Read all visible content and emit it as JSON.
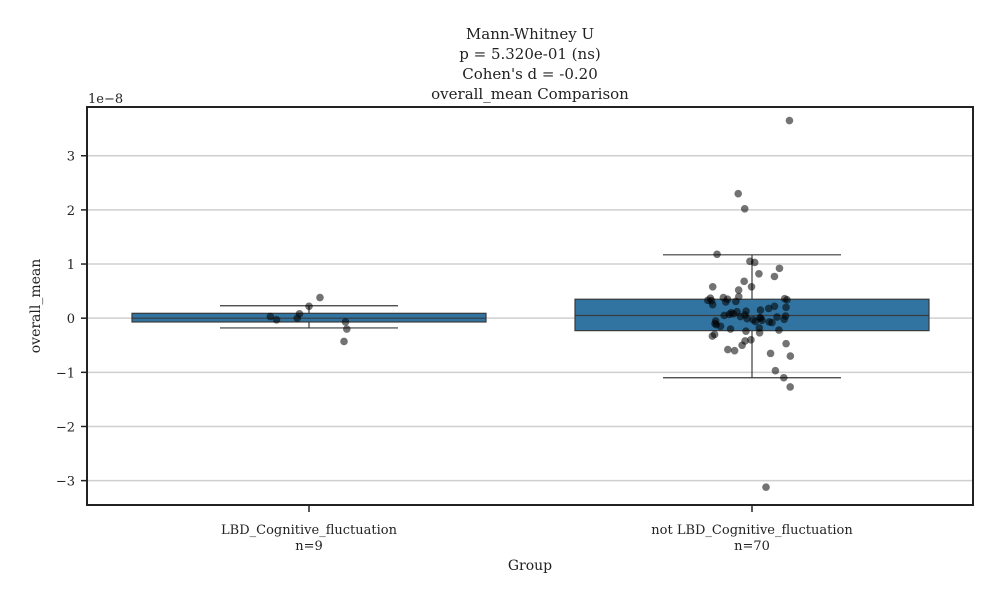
{
  "chart_data": {
    "type": "box",
    "title_lines": [
      "Mann-Whitney U",
      "p = 5.320e-01 (ns)",
      "Cohen's d = -0.20",
      "overall_mean Comparison"
    ],
    "xlabel": "Group",
    "ylabel": "overall_mean",
    "y_offset_label": "1e−8",
    "ylim": [
      -3.45,
      3.9
    ],
    "yticks": [
      -3,
      -2,
      -1,
      0,
      1,
      2,
      3
    ],
    "ytick_labels": [
      "−3",
      "−2",
      "−1",
      "0",
      "1",
      "2",
      "3"
    ],
    "grid": true,
    "box_color": "#3274a1",
    "groups": [
      {
        "name": "LBD_Cognitive_fluctuation",
        "n_label": "n=9",
        "whisker_low": -0.18,
        "q1": -0.07,
        "median": 0.0,
        "q3": 0.09,
        "whisker_high": 0.23,
        "points": [
          -0.43,
          -0.2,
          0.03,
          0.08,
          -0.07,
          -0.03,
          0.0,
          0.22,
          0.38
        ]
      },
      {
        "name": "not LBD_Cognitive_fluctuation",
        "n_label": "n=70",
        "whisker_low": -1.1,
        "q1": -0.23,
        "median": 0.05,
        "q3": 0.35,
        "whisker_high": 1.17,
        "points": [
          3.65,
          2.3,
          2.02,
          1.18,
          1.05,
          1.03,
          0.92,
          0.82,
          0.77,
          0.68,
          0.58,
          0.58,
          0.52,
          0.4,
          0.38,
          0.37,
          0.36,
          0.35,
          0.34,
          0.33,
          0.32,
          0.31,
          0.3,
          0.25,
          0.22,
          0.2,
          0.18,
          0.15,
          0.13,
          0.12,
          0.1,
          0.08,
          0.06,
          0.05,
          0.04,
          0.03,
          0.02,
          0.01,
          0.0,
          -0.01,
          -0.02,
          -0.03,
          -0.04,
          -0.05,
          -0.06,
          -0.07,
          -0.08,
          -0.1,
          -0.12,
          -0.15,
          -0.18,
          -0.2,
          -0.22,
          -0.24,
          -0.27,
          -0.3,
          -0.33,
          -0.4,
          -0.42,
          -0.47,
          -0.5,
          -0.58,
          -0.6,
          -0.65,
          -0.7,
          -0.97,
          -1.1,
          -1.27,
          -3.12,
          0.07
        ]
      }
    ]
  }
}
